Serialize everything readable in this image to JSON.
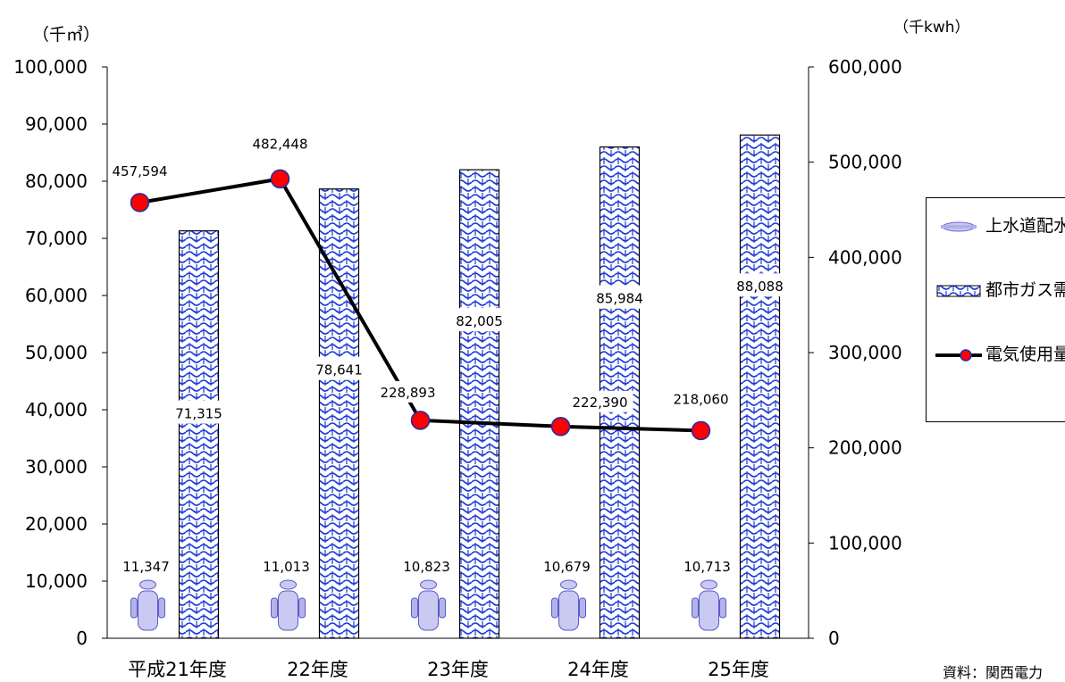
{
  "left_unit": "（千㎥）",
  "right_unit": "（千kwh）",
  "source": "資料：関西電力",
  "legend": {
    "water": "上水道配水量",
    "gas": "都市ガス需要量",
    "electric": "電気使用量"
  },
  "colors": {
    "bar_pattern": "#1f3bd6",
    "water_icon": "#c9c9f2",
    "line": "#000000",
    "marker_fill": "#ff0000",
    "marker_edge": "#1a2fb0"
  },
  "chart_data": {
    "type": "bar",
    "categories": [
      "平成21年度",
      "22年度",
      "23年度",
      "24年度",
      "25年度"
    ],
    "y_left": {
      "lim": [
        0,
        100000
      ],
      "ticks": [
        "0",
        "10,000",
        "20,000",
        "30,000",
        "40,000",
        "50,000",
        "60,000",
        "70,000",
        "80,000",
        "90,000",
        "100,000"
      ]
    },
    "y_right": {
      "lim": [
        0,
        600000
      ],
      "ticks": [
        "0",
        "100,000",
        "200,000",
        "300,000",
        "400,000",
        "500,000",
        "600,000"
      ]
    },
    "series": [
      {
        "name": "上水道配水量",
        "type": "icon",
        "axis": "left",
        "values": [
          11347,
          11013,
          10823,
          10679,
          10713
        ],
        "labels": [
          "11,347",
          "11,013",
          "10,823",
          "10,679",
          "10,713"
        ]
      },
      {
        "name": "都市ガス需要量",
        "type": "bar",
        "axis": "left",
        "values": [
          71315,
          78641,
          82005,
          85984,
          88088
        ],
        "labels": [
          "71,315",
          "78,641",
          "82,005",
          "85,984",
          "88,088"
        ]
      },
      {
        "name": "電気使用量",
        "type": "line",
        "axis": "right",
        "values": [
          457594,
          482448,
          228893,
          222390,
          218060
        ],
        "labels": [
          "457,594",
          "482,448",
          "228,893",
          "222,390",
          "218,060"
        ]
      }
    ]
  }
}
